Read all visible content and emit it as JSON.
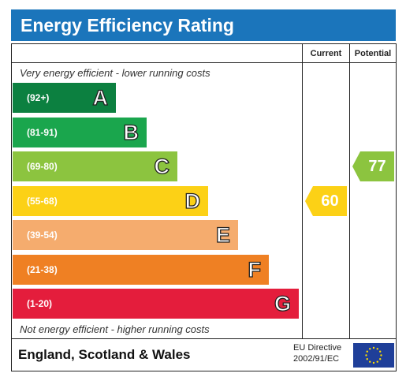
{
  "title": "Energy Efficiency Rating",
  "columns": {
    "current": "Current",
    "potential": "Potential"
  },
  "captions": {
    "top": "Very energy efficient - lower running costs",
    "bottom": "Not energy efficient - higher running costs"
  },
  "footer": {
    "region": "England, Scotland & Wales",
    "directive_line1": "EU Directive",
    "directive_line2": "2002/91/EC"
  },
  "chart_data": {
    "type": "bar",
    "title": "Energy Efficiency Rating",
    "categories": [
      "(92+)",
      "(81-91)",
      "(69-80)",
      "(55-68)",
      "(39-54)",
      "(21-38)",
      "(1-20)"
    ],
    "bands": [
      {
        "label": "(92+)",
        "letter": "A",
        "color": "#0c8040"
      },
      {
        "label": "(81-91)",
        "letter": "B",
        "color": "#1aa64d"
      },
      {
        "label": "(69-80)",
        "letter": "C",
        "color": "#8cc43f"
      },
      {
        "label": "(55-68)",
        "letter": "D",
        "color": "#fcd116"
      },
      {
        "label": "(39-54)",
        "letter": "E",
        "color": "#f5ac6e"
      },
      {
        "label": "(21-38)",
        "letter": "F",
        "color": "#ef8023"
      },
      {
        "label": "(1-20)",
        "letter": "G",
        "color": "#e41d3c"
      }
    ],
    "current": {
      "value": 60,
      "band": "D",
      "color": "#fcd116"
    },
    "potential": {
      "value": 77,
      "band": "C",
      "color": "#8cc43f"
    }
  },
  "colors": {
    "title_bg": "#1b75bb",
    "eu_flag": "#1f3f99",
    "eu_stars": "#ffdd00"
  }
}
